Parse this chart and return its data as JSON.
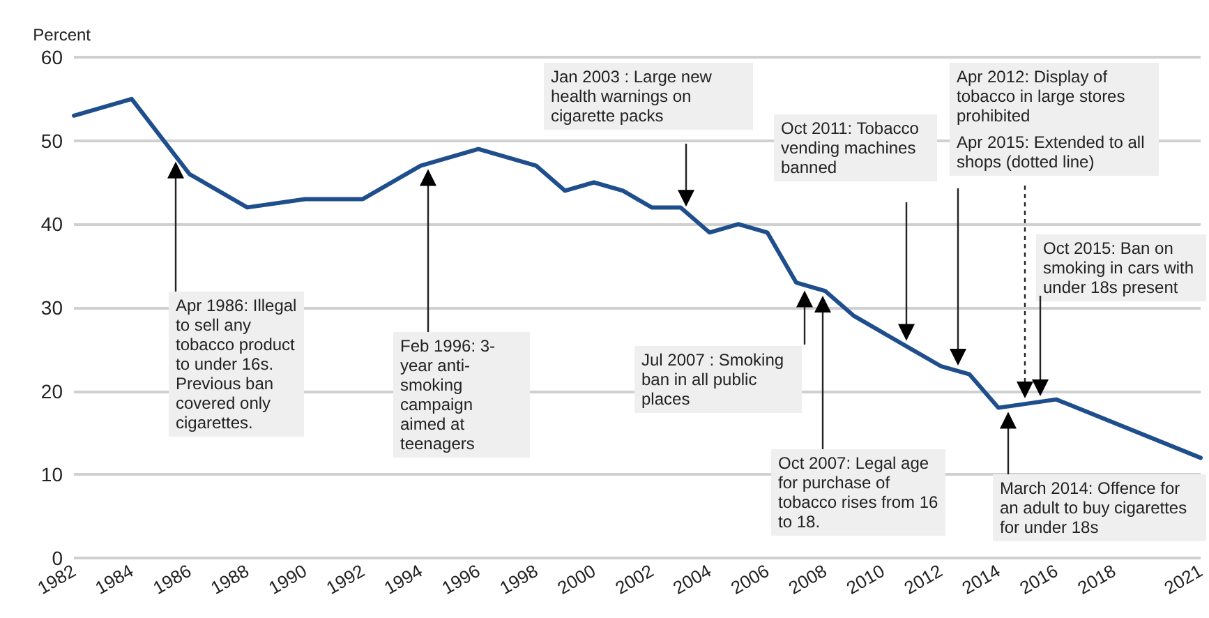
{
  "chart_data": {
    "type": "line",
    "ylabel": "Percent",
    "x": [
      1982,
      1984,
      1986,
      1988,
      1990,
      1992,
      1994,
      1996,
      1998,
      1999,
      2000,
      2001,
      2002,
      2003,
      2004,
      2005,
      2006,
      2007,
      2008,
      2009,
      2010,
      2011,
      2012,
      2013,
      2014,
      2016,
      2021
    ],
    "series": [
      {
        "color": "#1f4e8c",
        "values": [
          53,
          55,
          46,
          42,
          43,
          43,
          47,
          49,
          47,
          44,
          45,
          44,
          42,
          42,
          39,
          40,
          39,
          33,
          32,
          29,
          27,
          25,
          23,
          22,
          18,
          19,
          12
        ]
      }
    ],
    "xlim": [
      1982,
      2021
    ],
    "xticks": [
      1982,
      1984,
      1986,
      1988,
      1990,
      1992,
      1994,
      1996,
      1998,
      2000,
      2002,
      2004,
      2006,
      2008,
      2010,
      2012,
      2014,
      2016,
      2018,
      2021
    ],
    "ylim": [
      0,
      60
    ],
    "yticks": [
      0,
      10,
      20,
      30,
      40,
      50,
      60
    ],
    "grid": "y",
    "marker": "none",
    "line_style": "solid",
    "annotations": [
      "Apr 1986: Illegal to sell any tobacco product to under 16s. Previous ban covered only cigarettes.",
      "Feb 1996: 3-year anti-smoking campaign aimed at teenagers",
      "Jan 2003 : Large new health warnings on cigarette packs",
      "Jul 2007 : Smoking ban in all public places",
      "Oct 2007: Legal age for purchase of tobacco rises from 16 to 18.",
      "Oct 2011: Tobacco vending machines banned",
      "Apr 2012: Display of tobacco in large stores prohibited",
      "Apr 2015:  Extended to all shops (dotted line)",
      "Oct 2015: Ban on smoking in cars with under 18s present",
      "March 2014: Offence for an adult to buy cigarettes for under 18s"
    ]
  }
}
